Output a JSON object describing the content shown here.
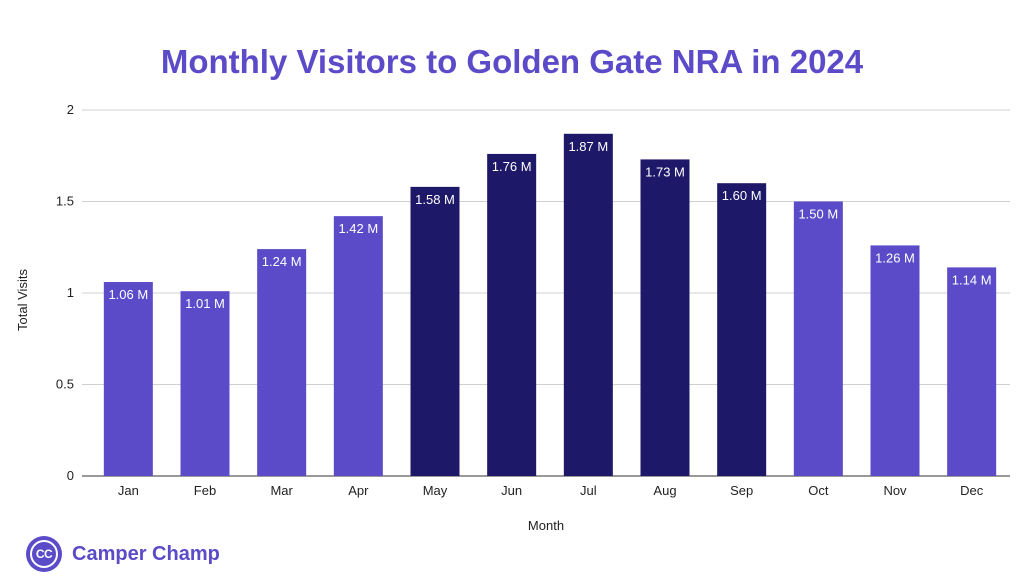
{
  "chart_data": {
    "type": "bar",
    "title": "Monthly Visitors to Golden Gate NRA in 2024",
    "xlabel": "Month",
    "ylabel": "Total Visits",
    "ylim": [
      0,
      2
    ],
    "yticks": [
      "0",
      "0.5",
      "1",
      "1.5",
      "2"
    ],
    "categories": [
      "Jan",
      "Feb",
      "Mar",
      "Apr",
      "May",
      "Jun",
      "Jul",
      "Aug",
      "Sep",
      "Oct",
      "Nov",
      "Dec"
    ],
    "values": [
      1.06,
      1.01,
      1.24,
      1.42,
      1.58,
      1.76,
      1.87,
      1.73,
      1.6,
      1.5,
      1.26,
      1.14
    ],
    "data_labels": [
      "1.06 M",
      "1.01 M",
      "1.24 M",
      "1.42 M",
      "1.58 M",
      "1.76 M",
      "1.87 M",
      "1.73 M",
      "1.60 M",
      "1.50 M",
      "1.26 M",
      "1.14 M"
    ],
    "highlighted": [
      false,
      false,
      false,
      false,
      true,
      true,
      true,
      true,
      true,
      false,
      false,
      false
    ],
    "grid": true,
    "legend": "none",
    "colors": {
      "bar": "#5b4bc8",
      "bar_highlight": "#1e1868",
      "title": "#5b4bc8",
      "grid": "#d0d0d0",
      "axis_text": "#222222",
      "label_text": "#ffffff"
    }
  },
  "brand": {
    "logo_text": "CC",
    "name": "Camper Champ"
  }
}
